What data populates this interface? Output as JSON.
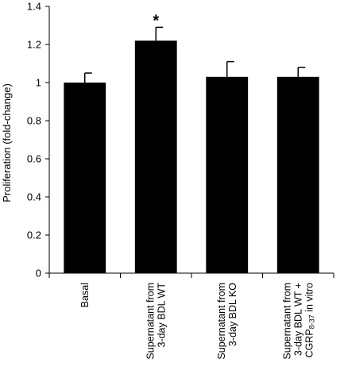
{
  "chart_data": {
    "type": "bar",
    "categories": [
      [
        "Basal"
      ],
      [
        "Supernatant from",
        "3-day BDL WT"
      ],
      [
        "Supernatant from",
        "3-day BDL KO"
      ],
      [
        "Supernatant from",
        "3-day BDL WT +",
        "CGRP8-37 in vitro"
      ]
    ],
    "values": [
      1.0,
      1.22,
      1.03,
      1.03
    ],
    "errors": [
      0.05,
      0.07,
      0.08,
      0.05
    ],
    "significance": [
      "",
      "*",
      "",
      ""
    ],
    "ylabel": "Proliferation (fold-change)",
    "xlabel": "",
    "ylim": [
      0,
      1.4
    ],
    "yticks": [
      0,
      0.2,
      0.4,
      0.6,
      0.8,
      1,
      1.2,
      1.4
    ],
    "bar_color": "#000000",
    "grid": false
  }
}
